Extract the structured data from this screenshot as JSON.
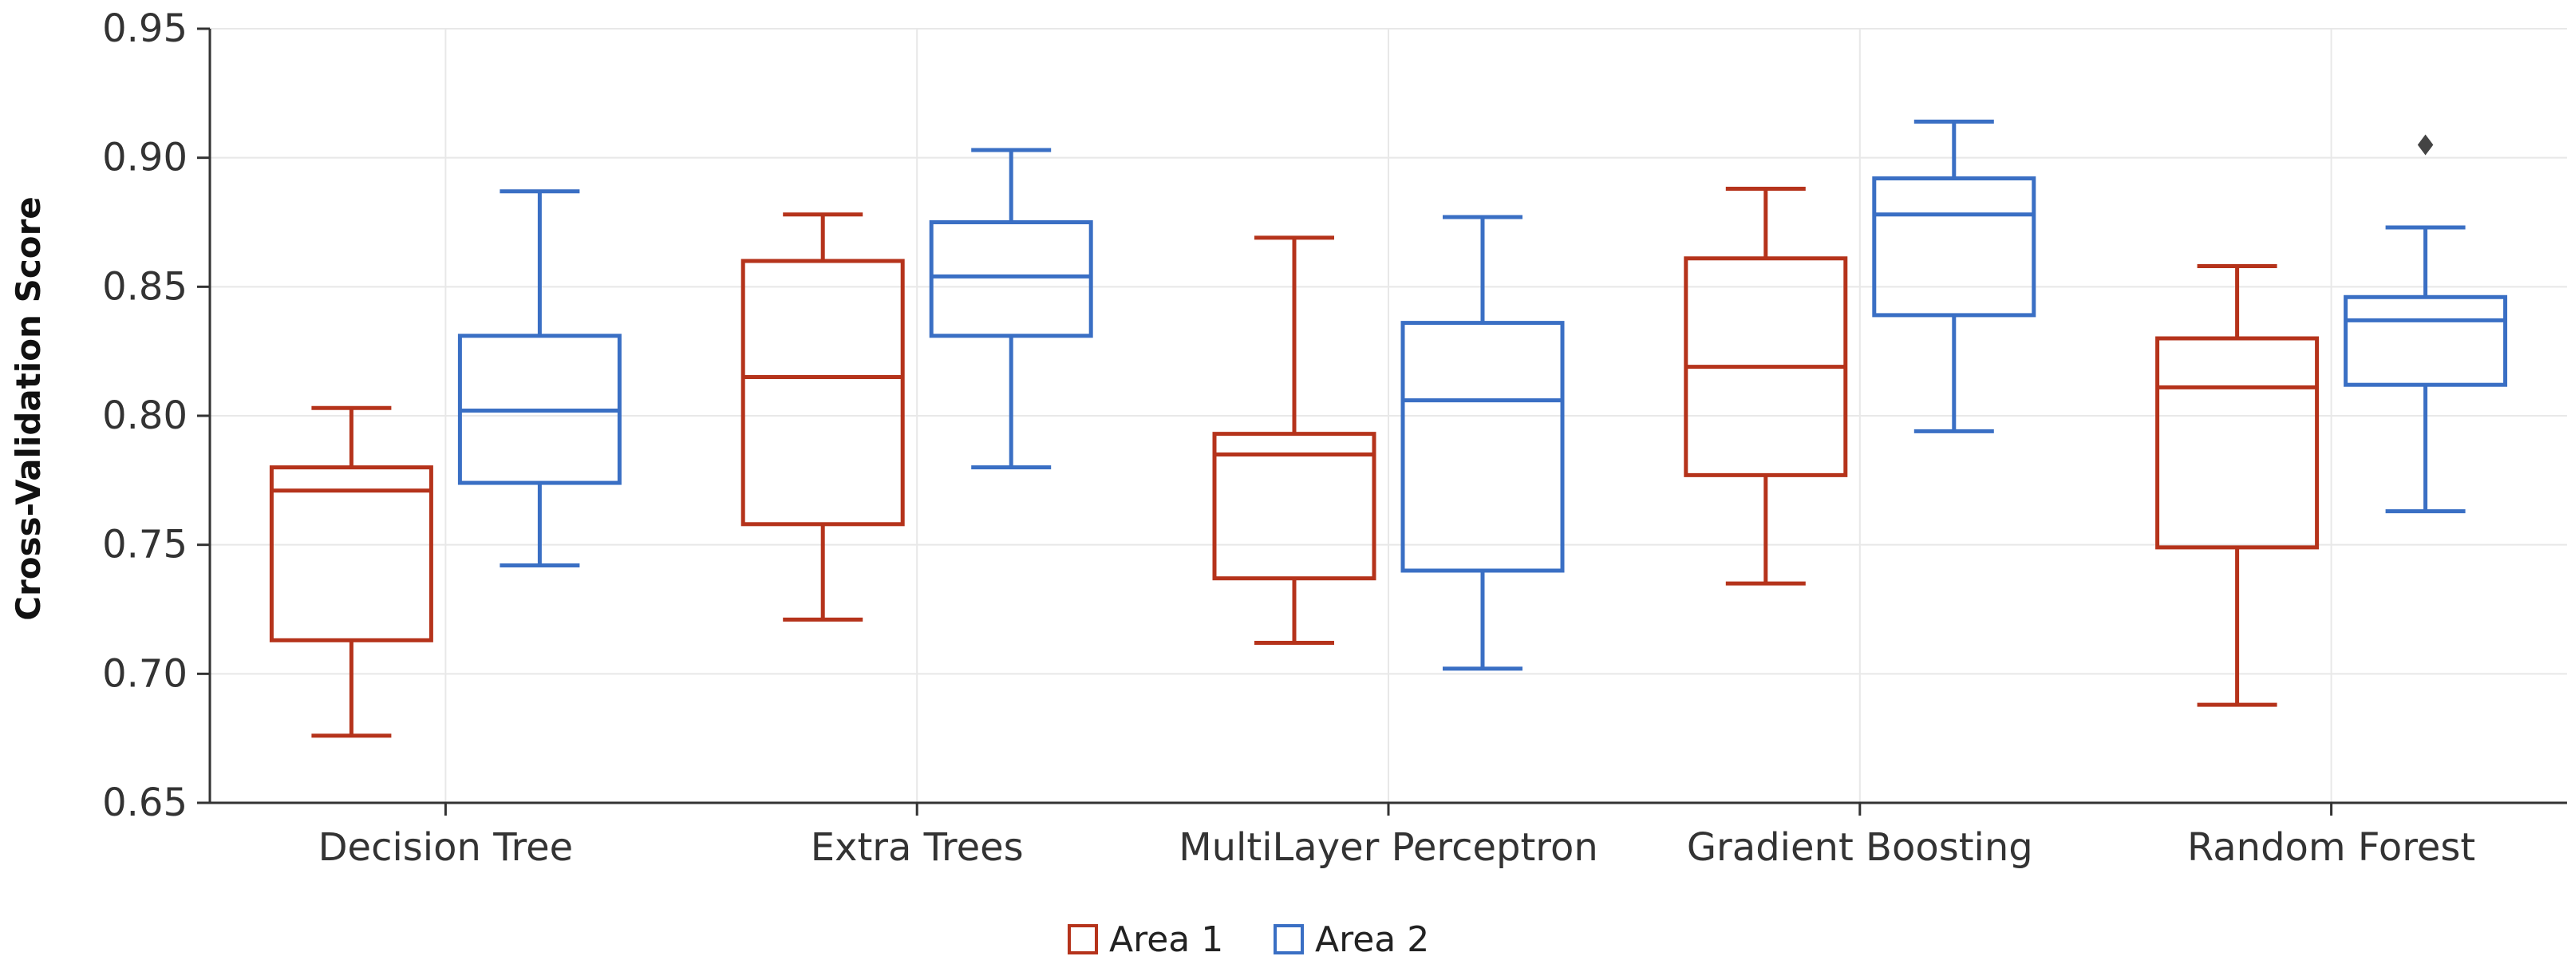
{
  "chart_data": {
    "type": "box",
    "title": "",
    "xlabel": "",
    "ylabel": "Cross-Validation Score",
    "ylim": [
      0.65,
      0.95
    ],
    "yticks": [
      0.65,
      0.7,
      0.75,
      0.8,
      0.85,
      0.9,
      0.95
    ],
    "ytick_labels": [
      "0.65",
      "0.70",
      "0.75",
      "0.80",
      "0.85",
      "0.90",
      "0.95"
    ],
    "grid": true,
    "legend_position": "bottom-center",
    "categories": [
      "Decision Tree",
      "Extra Trees",
      "MultiLayer Perceptron",
      "Gradient Boosting",
      "Random Forest"
    ],
    "series": [
      {
        "name": "Area 1",
        "color": "#b5331b",
        "boxes": [
          {
            "whisker_low": 0.676,
            "q1": 0.713,
            "median": 0.771,
            "q3": 0.78,
            "whisker_high": 0.803,
            "outliers": []
          },
          {
            "whisker_low": 0.721,
            "q1": 0.758,
            "median": 0.815,
            "q3": 0.86,
            "whisker_high": 0.878,
            "outliers": []
          },
          {
            "whisker_low": 0.712,
            "q1": 0.737,
            "median": 0.785,
            "q3": 0.793,
            "whisker_high": 0.869,
            "outliers": []
          },
          {
            "whisker_low": 0.735,
            "q1": 0.777,
            "median": 0.819,
            "q3": 0.861,
            "whisker_high": 0.888,
            "outliers": []
          },
          {
            "whisker_low": 0.688,
            "q1": 0.749,
            "median": 0.811,
            "q3": 0.83,
            "whisker_high": 0.858,
            "outliers": []
          }
        ]
      },
      {
        "name": "Area 2",
        "color": "#3a6fc4",
        "boxes": [
          {
            "whisker_low": 0.742,
            "q1": 0.774,
            "median": 0.802,
            "q3": 0.831,
            "whisker_high": 0.887,
            "outliers": []
          },
          {
            "whisker_low": 0.78,
            "q1": 0.831,
            "median": 0.854,
            "q3": 0.875,
            "whisker_high": 0.903,
            "outliers": []
          },
          {
            "whisker_low": 0.702,
            "q1": 0.74,
            "median": 0.806,
            "q3": 0.836,
            "whisker_high": 0.877,
            "outliers": []
          },
          {
            "whisker_low": 0.794,
            "q1": 0.839,
            "median": 0.878,
            "q3": 0.892,
            "whisker_high": 0.914,
            "outliers": []
          },
          {
            "whisker_low": 0.763,
            "q1": 0.812,
            "median": 0.837,
            "q3": 0.846,
            "whisker_high": 0.873,
            "outliers": [
              0.905
            ]
          }
        ]
      }
    ],
    "outlier_color": "#444444"
  }
}
